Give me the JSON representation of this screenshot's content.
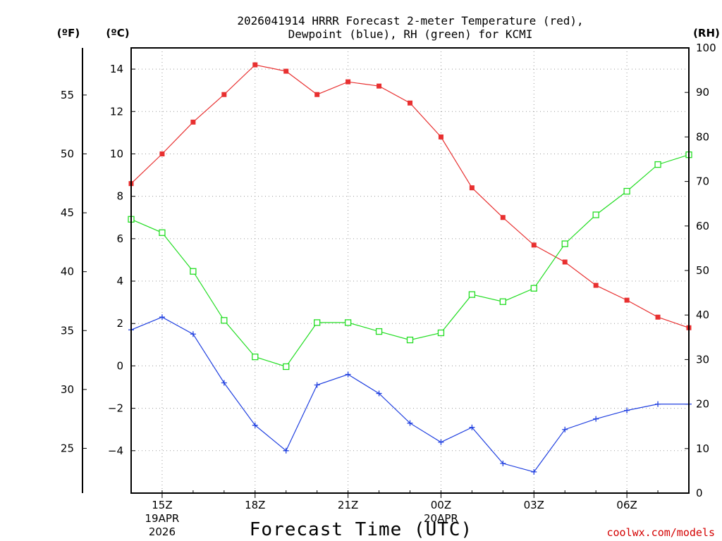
{
  "chart_data": {
    "type": "line",
    "title_line1": "2026041914 HRRR Forecast 2-meter Temperature (red),",
    "title_line2": "Dewpoint (blue), RH (green) for KCMI",
    "xlabel": "Forecast Time (UTC)",
    "left_outer_unit": "(ºF)",
    "left_inner_unit": "(ºC)",
    "right_unit": "(RH)",
    "watermark": "coolwx.com/models",
    "x_hours": [
      14,
      15,
      16,
      17,
      18,
      19,
      20,
      21,
      22,
      23,
      24,
      25,
      26,
      27,
      28,
      29,
      30,
      31,
      32
    ],
    "x_range": [
      14,
      32
    ],
    "x_ticks": [
      {
        "hour": 15,
        "label": "15Z",
        "sub1": "19APR",
        "sub2": "2026"
      },
      {
        "hour": 18,
        "label": "18Z"
      },
      {
        "hour": 21,
        "label": "21Z"
      },
      {
        "hour": 24,
        "label": "00Z",
        "sub1": "20APR"
      },
      {
        "hour": 27,
        "label": "03Z"
      },
      {
        "hour": 30,
        "label": "06Z"
      }
    ],
    "celsius_range": [
      -6,
      15
    ],
    "celsius_ticks": [
      -4,
      -2,
      0,
      2,
      4,
      6,
      8,
      10,
      12,
      14
    ],
    "fahrenheit_ticks": [
      25,
      30,
      35,
      40,
      45,
      50,
      55
    ],
    "rh_range": [
      0,
      100
    ],
    "rh_ticks": [
      0,
      10,
      20,
      30,
      40,
      50,
      60,
      70,
      80,
      90,
      100
    ],
    "series": [
      {
        "name": "Temperature",
        "unit": "C",
        "color": "#e83030",
        "marker": "filled-square",
        "values": [
          8.6,
          10.0,
          11.5,
          12.8,
          14.2,
          13.9,
          12.8,
          13.4,
          13.2,
          12.4,
          10.8,
          8.4,
          7.0,
          5.7,
          4.9,
          3.8,
          3.1,
          2.3,
          1.8
        ]
      },
      {
        "name": "Dewpoint",
        "unit": "C",
        "color": "#2040e0",
        "marker": "plus",
        "values": [
          1.7,
          2.3,
          1.5,
          -0.8,
          -2.8,
          -4.0,
          -0.9,
          -0.4,
          -1.3,
          -2.7,
          -3.6,
          -2.9,
          -4.6,
          -5.0,
          -3.0,
          -2.5,
          -2.1,
          -1.8,
          -1.8
        ]
      },
      {
        "name": "RH",
        "unit": "%",
        "color": "#22dd22",
        "marker": "open-square",
        "values": [
          61.5,
          58.5,
          49.8,
          38.8,
          30.6,
          28.4,
          38.3,
          38.3,
          36.3,
          34.4,
          36.0,
          44.6,
          43.0,
          46.0,
          56.0,
          62.5,
          67.8,
          73.8,
          76.0
        ]
      }
    ]
  }
}
